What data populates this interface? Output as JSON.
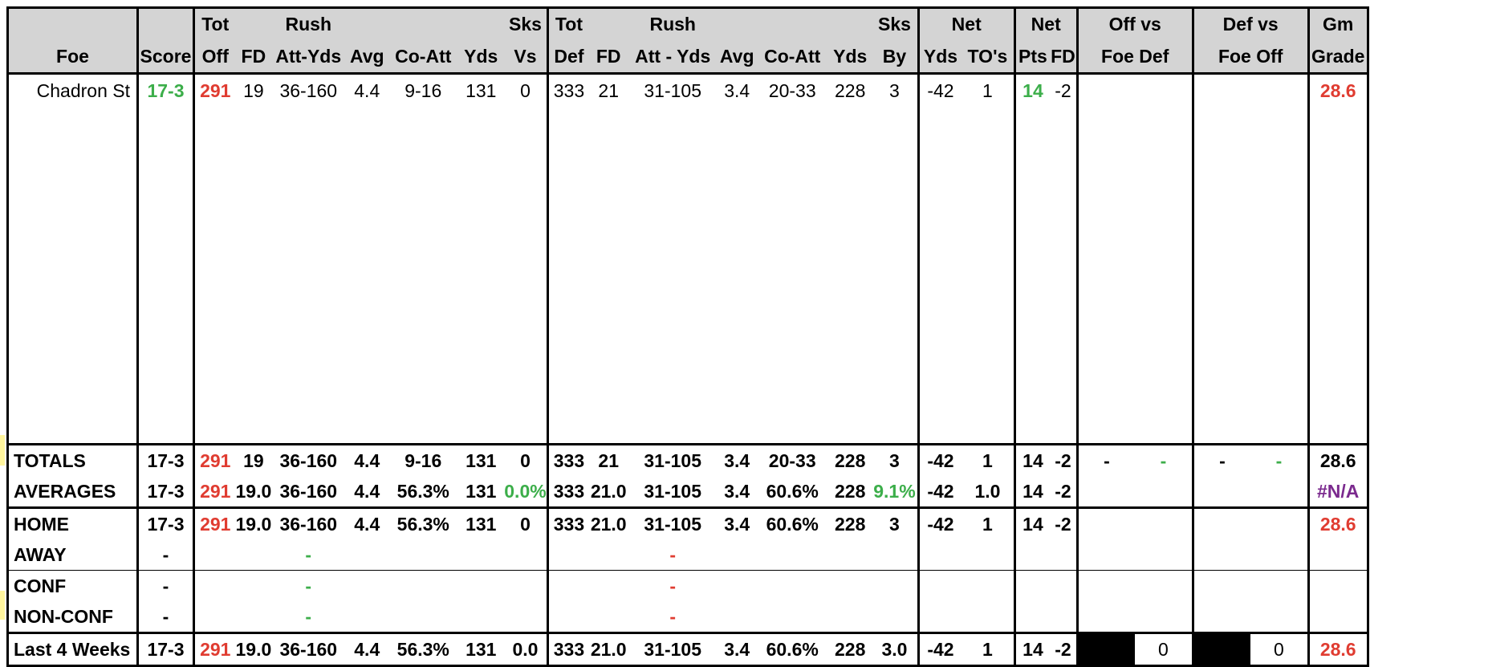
{
  "header": {
    "row1": [
      "",
      "",
      "Tot",
      "Rush",
      "",
      "",
      "",
      "Sks",
      "Tot",
      "Rush",
      "",
      "",
      "",
      "Sks",
      "Net",
      "Net",
      "Off vs",
      "Def vs",
      "Gm"
    ],
    "foe": "Foe",
    "score": "Score",
    "off_tot": "Off",
    "off_fd": "FD",
    "off_rush": "Att-Yds",
    "off_avg": "Avg",
    "off_coatt": "Co-Att",
    "off_yds": "Yds",
    "sks_vs": "Vs",
    "def_tot": "Def",
    "def_fd": "FD",
    "def_rush": "Att - Yds",
    "def_avg": "Avg",
    "def_coatt": "Co-Att",
    "def_yds": "Yds",
    "sks_by": "By",
    "net_yds": "Yds",
    "net_tos": "TO's",
    "net_pts": "Pts",
    "net_fd": "FD",
    "off_vs_foe": "Foe Def",
    "def_vs_foe": "Foe Off",
    "gm_grade": "Grade",
    "tot1": "Tot",
    "rush1": "Rush",
    "sks1": "Sks",
    "tot2": "Tot",
    "rush2": "Rush",
    "sks2": "Sks",
    "net1": "Net",
    "net2": "Net",
    "offvs": "Off vs",
    "defvs": "Def vs",
    "gm": "Gm"
  },
  "game": {
    "foe": "Chadron St",
    "score": "17-3",
    "tot_off": "291",
    "fd": "19",
    "rush": "36-160",
    "avg": "4.4",
    "coatt": "9-16",
    "yds": "131",
    "sks_vs": "0",
    "tot_def": "333",
    "dfd": "21",
    "drush": "31-105",
    "davg": "3.4",
    "dcoatt": "20-33",
    "dyds": "228",
    "sks_by": "3",
    "net_yds": "-42",
    "net_to": "1",
    "net_pts": "14",
    "net_fd": "-2",
    "grade": "28.6"
  },
  "totals": {
    "label": "TOTALS",
    "score": "17-3",
    "tot_off": "291",
    "fd": "19",
    "rush": "36-160",
    "avg": "4.4",
    "coatt": "9-16",
    "yds": "131",
    "sks_vs": "0",
    "tot_def": "333",
    "dfd": "21",
    "drush": "31-105",
    "davg": "3.4",
    "dcoatt": "20-33",
    "dyds": "228",
    "sks_by": "3",
    "net_yds": "-42",
    "net_to": "1",
    "net_pts": "14",
    "net_fd": "-2",
    "offvs_a": "-",
    "offvs_b": "-",
    "defvs_a": "-",
    "defvs_b": "-",
    "grade": "28.6"
  },
  "averages": {
    "label": "AVERAGES",
    "score": "17-3",
    "tot_off": "291",
    "fd": "19.0",
    "rush": "36-160",
    "avg": "4.4",
    "coatt": "56.3%",
    "yds": "131",
    "sks_vs": "0.0%",
    "tot_def": "333",
    "dfd": "21.0",
    "drush": "31-105",
    "davg": "3.4",
    "dcoatt": "60.6%",
    "dyds": "228",
    "sks_by": "9.1%",
    "net_yds": "-42",
    "net_to": "1.0",
    "net_pts": "14",
    "net_fd": "-2",
    "grade": "#N/A"
  },
  "home": {
    "label": "HOME",
    "score": "17-3",
    "tot_off": "291",
    "fd": "19.0",
    "rush": "36-160",
    "avg": "4.4",
    "coatt": "56.3%",
    "yds": "131",
    "sks_vs": "0",
    "tot_def": "333",
    "dfd": "21.0",
    "drush": "31-105",
    "davg": "3.4",
    "dcoatt": "60.6%",
    "dyds": "228",
    "sks_by": "3",
    "net_yds": "-42",
    "net_to": "1",
    "net_pts": "14",
    "net_fd": "-2",
    "grade": "28.6"
  },
  "away": {
    "label": "AWAY",
    "score": "-",
    "rush": "-",
    "drush": "-"
  },
  "conf": {
    "label": "CONF",
    "score": "-",
    "rush": "-",
    "drush": "-"
  },
  "nonconf": {
    "label": "NON-CONF",
    "score": "-",
    "rush": "-",
    "drush": "-"
  },
  "last4": {
    "label": "Last 4 Weeks",
    "score": "17-3",
    "tot_off": "291",
    "fd": "19.0",
    "rush": "36-160",
    "avg": "4.4",
    "coatt": "56.3%",
    "yds": "131",
    "sks_vs": "0.0",
    "tot_def": "333",
    "dfd": "21.0",
    "drush": "31-105",
    "davg": "3.4",
    "dcoatt": "60.6%",
    "dyds": "228",
    "sks_by": "3.0",
    "net_yds": "-42",
    "net_to": "1",
    "net_pts": "14",
    "net_fd": "-2",
    "offvs": "0",
    "defvs": "0",
    "grade": "28.6"
  },
  "colors": {
    "red": "#e03c31",
    "green": "#3cae4a",
    "purple": "#7b2a8e",
    "header_bg": "#d4d4d4"
  }
}
